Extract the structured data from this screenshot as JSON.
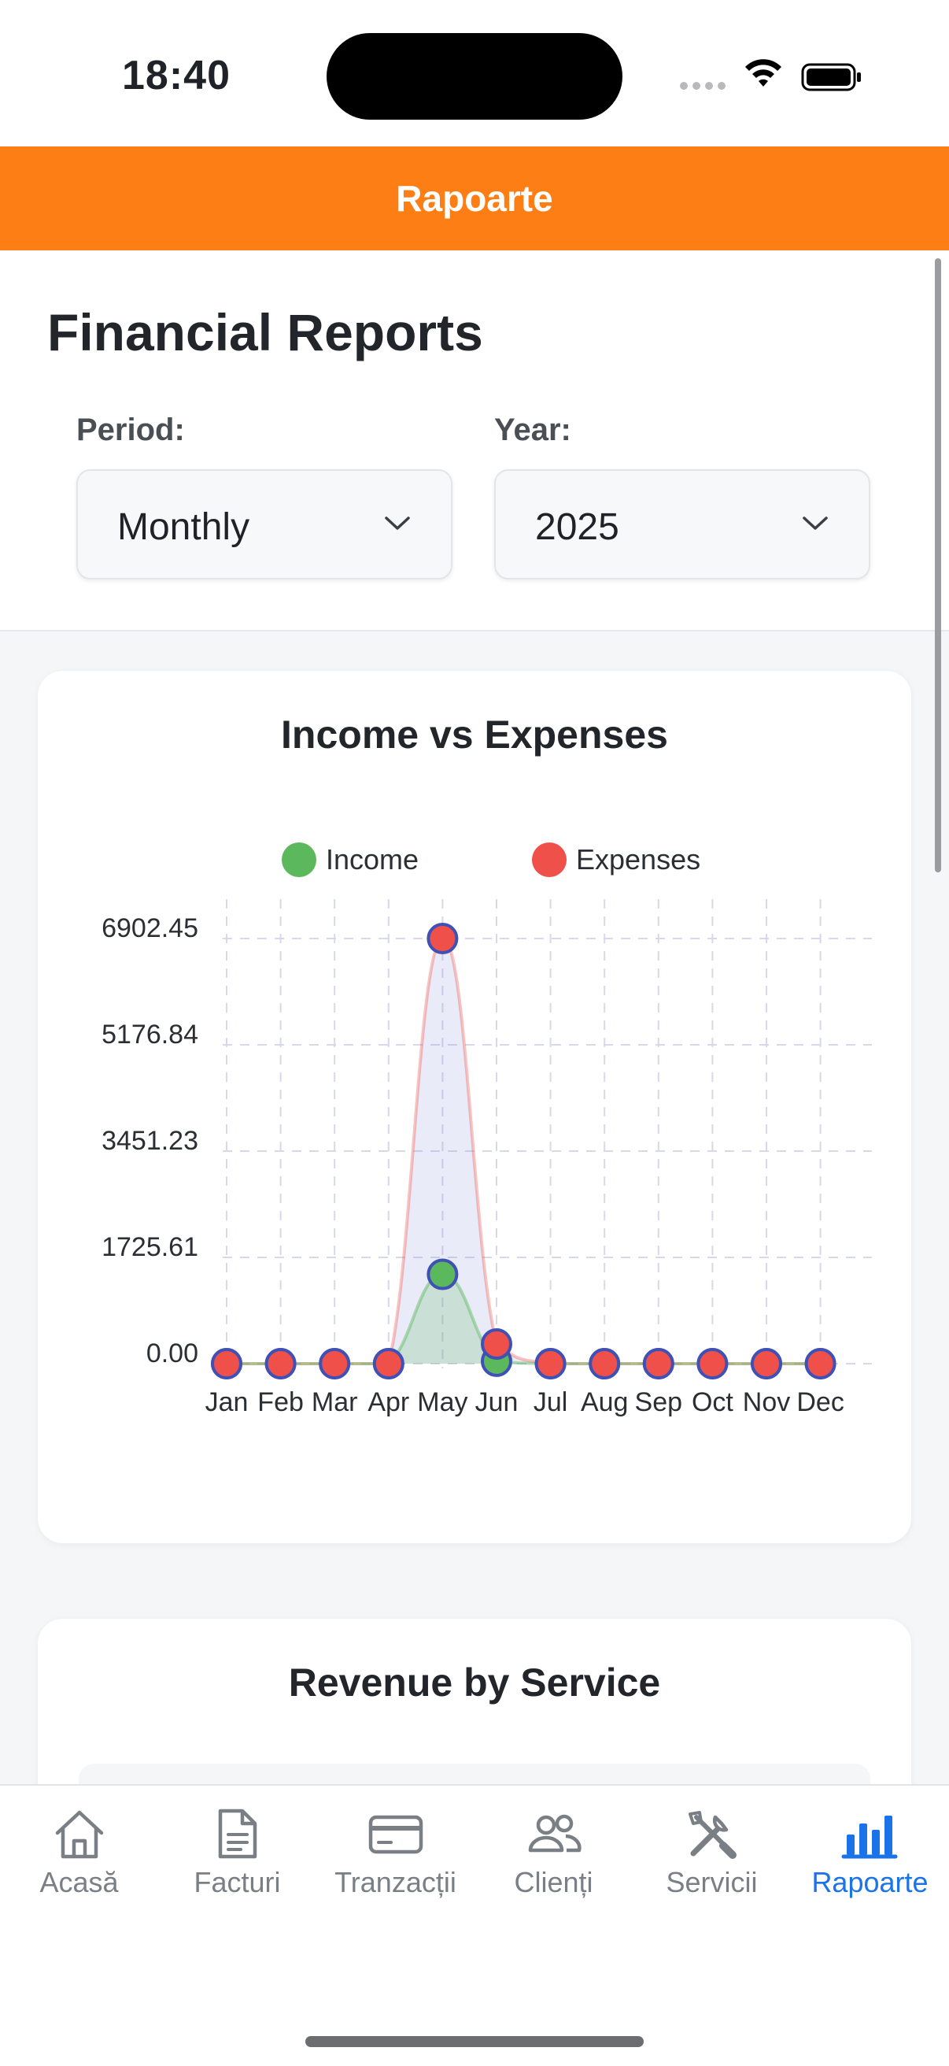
{
  "status_bar": {
    "time": "18:40"
  },
  "app_bar": {
    "title": "Rapoarte"
  },
  "header": {
    "title": "Financial Reports",
    "period_label": "Period:",
    "period_value": "Monthly",
    "year_label": "Year:",
    "year_value": "2025"
  },
  "income_card": {
    "title": "Income vs Expenses"
  },
  "revenue_card": {
    "title": "Revenue by Service"
  },
  "chart_data": {
    "type": "line",
    "title": "Income vs Expenses",
    "categories": [
      "Jan",
      "Feb",
      "Mar",
      "Apr",
      "May",
      "Jun",
      "Jul",
      "Aug",
      "Sep",
      "Oct",
      "Nov",
      "Dec"
    ],
    "series": [
      {
        "name": "Income",
        "color": "#5cb85c",
        "values": [
          0,
          0,
          0,
          0,
          1450,
          40,
          0,
          0,
          0,
          0,
          0,
          0
        ]
      },
      {
        "name": "Expenses",
        "color": "#f0504a",
        "values": [
          0,
          0,
          0,
          0,
          6902.45,
          320,
          0,
          0,
          0,
          0,
          0,
          0
        ]
      }
    ],
    "y_ticks": [
      "0.00",
      "1725.61",
      "3451.23",
      "5176.84",
      "6902.45"
    ],
    "ylim": [
      0,
      6902.45
    ],
    "legend_position": "top",
    "grid": true
  },
  "tabs": [
    {
      "label": "Acasă",
      "icon": "home-icon",
      "active": false
    },
    {
      "label": "Facturi",
      "icon": "document-icon",
      "active": false
    },
    {
      "label": "Tranzacții",
      "icon": "card-icon",
      "active": false
    },
    {
      "label": "Clienți",
      "icon": "users-icon",
      "active": false
    },
    {
      "label": "Servicii",
      "icon": "tools-icon",
      "active": false
    },
    {
      "label": "Rapoarte",
      "icon": "bar-chart-icon",
      "active": true
    }
  ],
  "colors": {
    "accent": "#fd7e14",
    "active_tab": "#1a73e8",
    "point_border": "#3f51b5"
  }
}
